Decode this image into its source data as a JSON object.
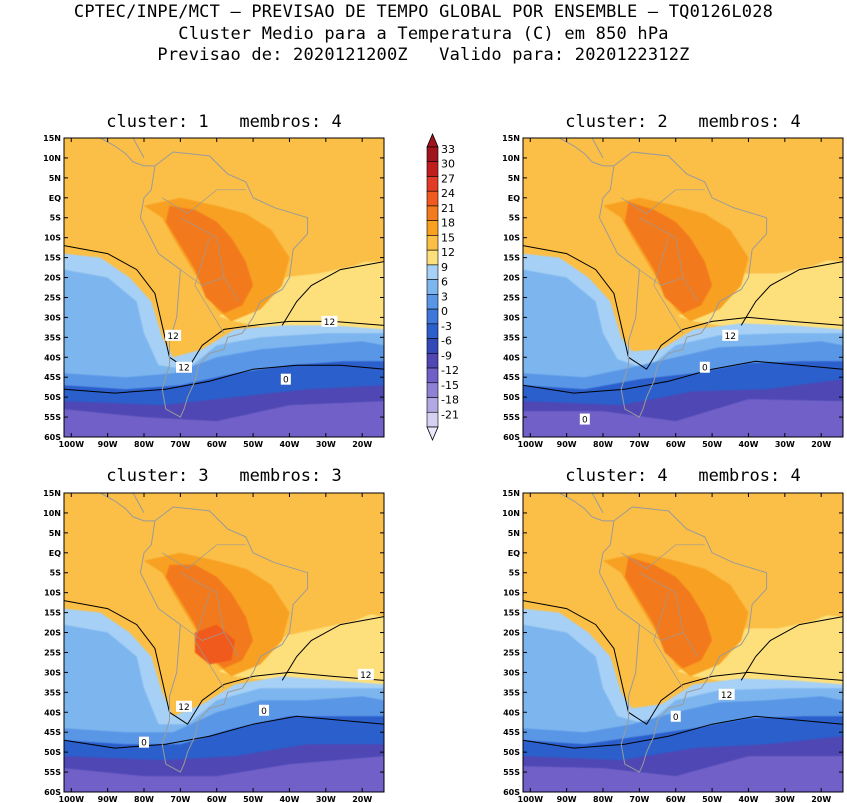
{
  "header": {
    "line1": "CPTEC/INPE/MCT – PREVISAO DE TEMPO GLOBAL POR ENSEMBLE – TQ0126L028",
    "line2": "Cluster Medio para a Temperatura (C) em 850 hPa",
    "line3": "Previsao de: 2020121200Z   Valido para: 2020122312Z"
  },
  "lat_ticks": [
    "15N",
    "10N",
    "5N",
    "EQ",
    "5S",
    "10S",
    "15S",
    "20S",
    "25S",
    "30S",
    "35S",
    "40S",
    "45S",
    "50S",
    "55S",
    "60S"
  ],
  "lon_ticks": [
    "100W",
    "90W",
    "80W",
    "70W",
    "60W",
    "50W",
    "40W",
    "30W",
    "20W"
  ],
  "colorbar": {
    "labels": [
      "33",
      "30",
      "27",
      "24",
      "21",
      "18",
      "15",
      "12",
      "9",
      "6",
      "3",
      "0",
      "-3",
      "-6",
      "-9",
      "-12",
      "-15",
      "-18",
      "-21"
    ],
    "colors": [
      "#a0141e",
      "#c01e1e",
      "#e23c28",
      "#f05a1e",
      "#f37a1e",
      "#f8a020",
      "#fbbf46",
      "#fde07c",
      "#a6d0f5",
      "#7db6ef",
      "#5a96e6",
      "#3e78da",
      "#2c5fcc",
      "#3448b8",
      "#5046b4",
      "#7060c8",
      "#8f82d6",
      "#b2a8e4",
      "#d6d0f2"
    ]
  },
  "panels": [
    {
      "title": "cluster: 1   membros: 4",
      "labels": [
        {
          "t": "12",
          "x": -72,
          "y": -34.5
        },
        {
          "t": "12",
          "x": -29,
          "y": -31
        },
        {
          "t": "12",
          "x": -69,
          "y": -42.5
        },
        {
          "t": "0",
          "x": -41,
          "y": -45.5
        }
      ]
    },
    {
      "title": "cluster: 2   membros: 4",
      "labels": [
        {
          "t": "12",
          "x": -45,
          "y": -34.5
        },
        {
          "t": "0",
          "x": -52,
          "y": -42.5
        },
        {
          "t": "0",
          "x": -85,
          "y": -55.5
        }
      ]
    },
    {
      "title": "cluster: 3   membros: 3",
      "labels": [
        {
          "t": "12",
          "x": -19,
          "y": -30.5
        },
        {
          "t": "12",
          "x": -69,
          "y": -38.5
        },
        {
          "t": "0",
          "x": -47,
          "y": -39.5
        },
        {
          "t": "0",
          "x": -80,
          "y": -47.5
        }
      ]
    },
    {
      "title": "cluster: 4   membros: 4",
      "labels": [
        {
          "t": "12",
          "x": -46,
          "y": -35.5
        },
        {
          "t": "0",
          "x": -60,
          "y": -41
        }
      ]
    }
  ]
}
